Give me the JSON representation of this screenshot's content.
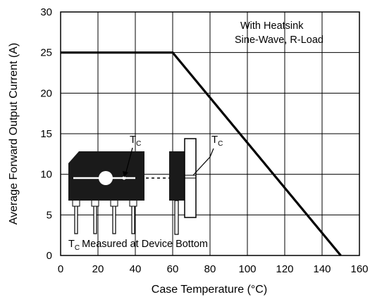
{
  "chart_data": {
    "type": "line",
    "title": "",
    "xlabel": "Case Temperature (°C)",
    "ylabel": "Average Forward Output Current (A)",
    "xlim": [
      0,
      160
    ],
    "ylim": [
      0,
      30
    ],
    "xticks": [
      0,
      20,
      40,
      60,
      80,
      100,
      120,
      140,
      160
    ],
    "yticks": [
      0,
      5,
      10,
      15,
      20,
      25,
      30
    ],
    "grid": true,
    "series": [
      {
        "x": [
          0,
          60,
          150
        ],
        "y": [
          25,
          25,
          0
        ]
      }
    ],
    "annotations": {
      "condition_line1": "With Heatsink",
      "condition_line2": "Sine-Wave, R-Load",
      "tc_main": "T",
      "tc_sub": "C",
      "tc_side": "T",
      "tc_side_sub": "C",
      "tc_note": "Measured at Device Bottom",
      "tc_note_prefix": "T",
      "tc_note_sub": "C"
    }
  }
}
